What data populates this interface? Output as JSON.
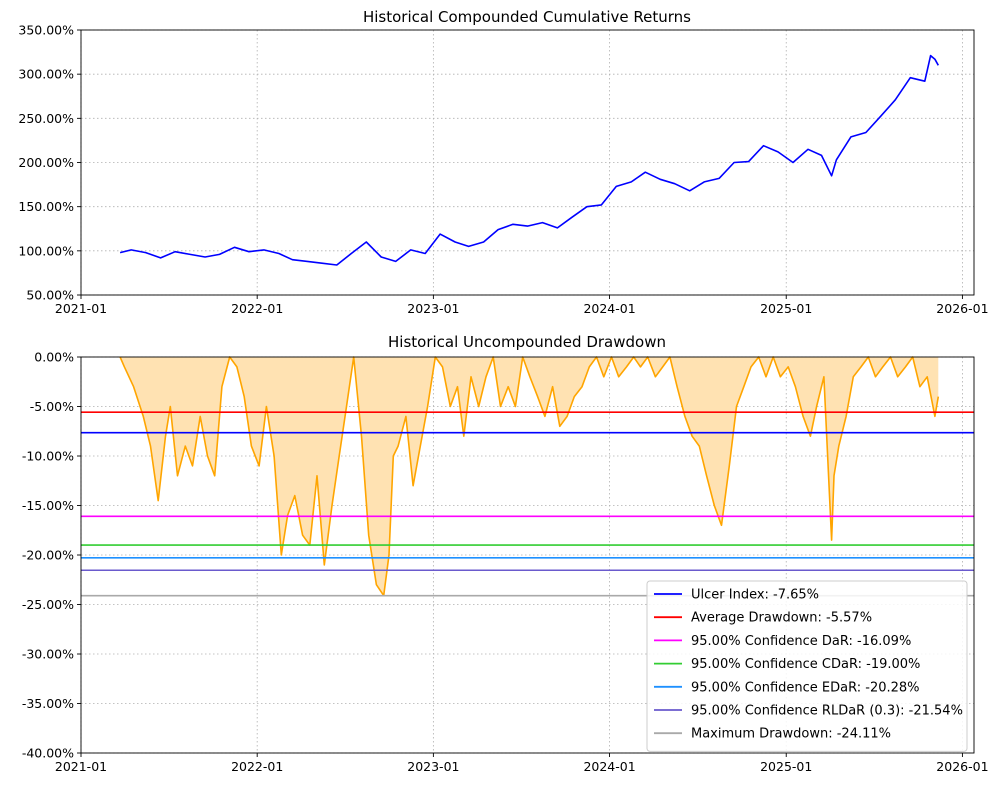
{
  "chart_data": [
    {
      "type": "line",
      "title": "Historical Compounded Cumulative Returns",
      "xlabel": "",
      "ylabel": "",
      "x_ticks": [
        "2021-01",
        "2022-01",
        "2023-01",
        "2024-01",
        "2025-01",
        "2026-01"
      ],
      "y_ticks": [
        "50.00%",
        "100.00%",
        "150.00%",
        "200.00%",
        "250.00%",
        "300.00%",
        "350.00%"
      ],
      "xlim": [
        "2021-01-01",
        "2026-01-25"
      ],
      "ylim": [
        50,
        350
      ],
      "grid": true,
      "series": [
        {
          "color": "#0000ff",
          "x": [
            "2021-03-23",
            "2021-04-15",
            "2021-05-15",
            "2021-06-15",
            "2021-07-15",
            "2021-08-15",
            "2021-09-15",
            "2021-10-15",
            "2021-11-15",
            "2021-12-15",
            "2022-01-15",
            "2022-02-15",
            "2022-03-15",
            "2022-04-15",
            "2022-05-15",
            "2022-06-15",
            "2022-07-15",
            "2022-08-15",
            "2022-09-15",
            "2022-10-15",
            "2022-11-15",
            "2022-12-15",
            "2023-01-15",
            "2023-02-15",
            "2023-03-15",
            "2023-04-15",
            "2023-05-15",
            "2023-06-15",
            "2023-07-15",
            "2023-08-15",
            "2023-09-15",
            "2023-10-15",
            "2023-11-15",
            "2023-12-15",
            "2024-01-15",
            "2024-02-15",
            "2024-03-15",
            "2024-04-15",
            "2024-05-15",
            "2024-06-15",
            "2024-07-15",
            "2024-08-15",
            "2024-09-15",
            "2024-10-15",
            "2024-11-15",
            "2024-12-15",
            "2025-01-15",
            "2025-02-15",
            "2025-03-15",
            "2025-04-05",
            "2025-04-15",
            "2025-05-15",
            "2025-06-15",
            "2025-07-15",
            "2025-08-15",
            "2025-09-15",
            "2025-10-15",
            "2025-10-27",
            "2025-11-05",
            "2025-11-12"
          ],
          "values": [
            98,
            101,
            98,
            92,
            99,
            96,
            93,
            96,
            104,
            99,
            101,
            97,
            90,
            88,
            86,
            84,
            97,
            110,
            93,
            88,
            101,
            97,
            119,
            110,
            105,
            110,
            124,
            130,
            128,
            132,
            126,
            138,
            150,
            152,
            173,
            178,
            189,
            181,
            176,
            168,
            178,
            182,
            200,
            201,
            219,
            212,
            200,
            215,
            208,
            185,
            203,
            229,
            234,
            252,
            271,
            296,
            292,
            321,
            317,
            310
          ]
        }
      ]
    },
    {
      "type": "area",
      "title": "Historical Uncompounded Drawdown",
      "xlabel": "",
      "ylabel": "",
      "x_ticks": [
        "2021-01",
        "2022-01",
        "2023-01",
        "2024-01",
        "2025-01",
        "2026-01"
      ],
      "y_ticks": [
        "0.00%",
        "-5.00%",
        "-10.00%",
        "-15.00%",
        "-20.00%",
        "-25.00%",
        "-30.00%",
        "-35.00%",
        "-40.00%"
      ],
      "xlim": [
        "2021-01-01",
        "2026-01-25"
      ],
      "ylim": [
        -40,
        0
      ],
      "grid": true,
      "legend_position": "lower-right",
      "series": [
        {
          "color": "#ffa500",
          "fill": "#ffe2b2",
          "x": [
            "2021-03-23",
            "2021-04-01",
            "2021-04-20",
            "2021-05-10",
            "2021-05-25",
            "2021-06-10",
            "2021-06-25",
            "2021-07-05",
            "2021-07-20",
            "2021-08-05",
            "2021-08-20",
            "2021-09-05",
            "2021-09-20",
            "2021-10-05",
            "2021-10-20",
            "2021-11-05",
            "2021-11-20",
            "2021-12-05",
            "2021-12-20",
            "2022-01-05",
            "2022-01-20",
            "2022-02-05",
            "2022-02-20",
            "2022-03-05",
            "2022-03-20",
            "2022-04-05",
            "2022-04-20",
            "2022-05-05",
            "2022-05-20",
            "2022-06-05",
            "2022-06-20",
            "2022-07-05",
            "2022-07-20",
            "2022-08-05",
            "2022-08-20",
            "2022-09-05",
            "2022-09-20",
            "2022-10-01",
            "2022-10-10",
            "2022-10-20",
            "2022-11-05",
            "2022-11-20",
            "2022-12-05",
            "2022-12-20",
            "2023-01-05",
            "2023-01-20",
            "2023-02-05",
            "2023-02-20",
            "2023-03-05",
            "2023-03-20",
            "2023-04-05",
            "2023-04-20",
            "2023-05-05",
            "2023-05-20",
            "2023-06-05",
            "2023-06-20",
            "2023-07-05",
            "2023-07-20",
            "2023-08-05",
            "2023-08-20",
            "2023-09-05",
            "2023-09-20",
            "2023-10-05",
            "2023-10-20",
            "2023-11-05",
            "2023-11-20",
            "2023-12-05",
            "2023-12-20",
            "2024-01-05",
            "2024-01-20",
            "2024-02-05",
            "2024-02-20",
            "2024-03-05",
            "2024-03-20",
            "2024-04-05",
            "2024-04-20",
            "2024-05-05",
            "2024-05-20",
            "2024-06-05",
            "2024-06-20",
            "2024-07-05",
            "2024-07-20",
            "2024-08-05",
            "2024-08-20",
            "2024-09-05",
            "2024-09-20",
            "2024-10-05",
            "2024-10-20",
            "2024-11-05",
            "2024-11-20",
            "2024-12-05",
            "2024-12-20",
            "2025-01-05",
            "2025-01-20",
            "2025-02-05",
            "2025-02-20",
            "2025-03-05",
            "2025-03-20",
            "2025-04-05",
            "2025-04-10",
            "2025-04-20",
            "2025-05-05",
            "2025-05-20",
            "2025-06-05",
            "2025-06-20",
            "2025-07-05",
            "2025-07-20",
            "2025-08-05",
            "2025-08-20",
            "2025-09-05",
            "2025-09-20",
            "2025-10-05",
            "2025-10-20",
            "2025-11-05",
            "2025-11-12"
          ],
          "values": [
            0,
            -1,
            -3,
            -6,
            -9,
            -14.5,
            -8,
            -5,
            -12,
            -9,
            -11,
            -6,
            -10,
            -12,
            -3,
            0,
            -1,
            -4,
            -9,
            -11,
            -5,
            -10,
            -20,
            -16,
            -14,
            -18,
            -19,
            -12,
            -21,
            -15,
            -10,
            -5,
            0,
            -8,
            -18,
            -23,
            -24.1,
            -20,
            -10,
            -9,
            -6,
            -13,
            -9,
            -5,
            0,
            -1,
            -5,
            -3,
            -8,
            -2,
            -5,
            -2,
            0,
            -5,
            -3,
            -5,
            0,
            -2,
            -4,
            -6,
            -3,
            -7,
            -6,
            -4,
            -3,
            -1,
            0,
            -2,
            0,
            -2,
            -1,
            0,
            -1,
            0,
            -2,
            -1,
            0,
            -3,
            -6,
            -8,
            -9,
            -12,
            -15,
            -17,
            -11,
            -5,
            -3,
            -1,
            0,
            -2,
            0,
            -2,
            -1,
            -3,
            -6,
            -8,
            -5,
            -2,
            -18.5,
            -12,
            -9,
            -6,
            -2,
            -1,
            0,
            -2,
            -1,
            0,
            -2,
            -1,
            0,
            -3,
            -2,
            -6,
            -4
          ]
        }
      ],
      "reference_lines": [
        {
          "label": "Ulcer Index: -7.65%",
          "value": -7.65,
          "color": "#0000ff"
        },
        {
          "label": "Average Drawdown: -5.57%",
          "value": -5.57,
          "color": "#ff0000"
        },
        {
          "label": "95.00% Confidence DaR: -16.09%",
          "value": -16.09,
          "color": "#ff00ff"
        },
        {
          "label": "95.00% Confidence CDaR: -19.00%",
          "value": -19.0,
          "color": "#32cd32"
        },
        {
          "label": "95.00% Confidence EDaR: -20.28%",
          "value": -20.28,
          "color": "#1e90ff"
        },
        {
          "label": "95.00% Confidence RLDaR (0.3): -21.54%",
          "value": -21.54,
          "color": "#6a5acd"
        },
        {
          "label": "Maximum Drawdown: -24.11%",
          "value": -24.11,
          "color": "#a9a9a9"
        }
      ]
    }
  ]
}
